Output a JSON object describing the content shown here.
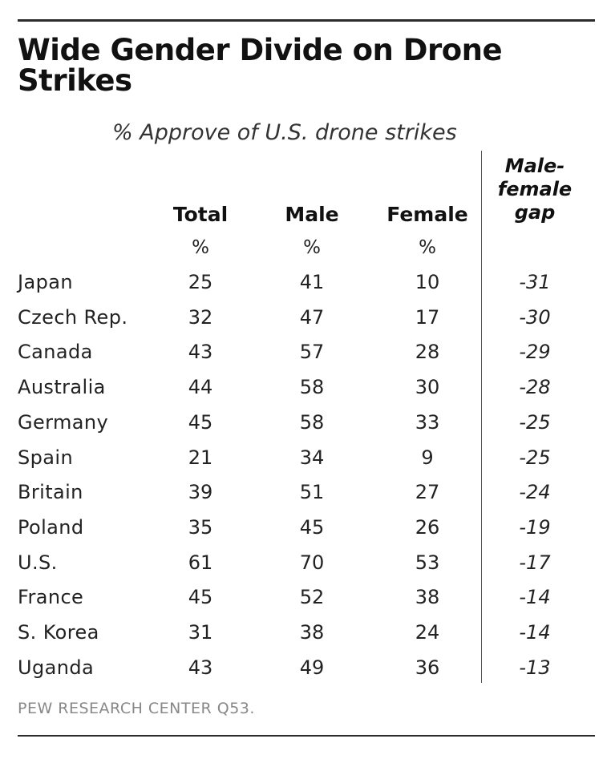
{
  "title": "Wide Gender Divide on Drone Strikes",
  "chart_data": {
    "type": "table",
    "subtitle": "% Approve of U.S. drone strikes",
    "columns": {
      "total": "Total",
      "male": "Male",
      "female": "Female",
      "gap": "Male-female gap"
    },
    "units": {
      "total": "%",
      "male": "%",
      "female": "%"
    },
    "rows": [
      {
        "country": "Japan",
        "total": "25",
        "male": "41",
        "female": "10",
        "gap": "-31"
      },
      {
        "country": "Czech Rep.",
        "total": "32",
        "male": "47",
        "female": "17",
        "gap": "-30"
      },
      {
        "country": "Canada",
        "total": "43",
        "male": "57",
        "female": "28",
        "gap": "-29"
      },
      {
        "country": "Australia",
        "total": "44",
        "male": "58",
        "female": "30",
        "gap": "-28"
      },
      {
        "country": "Germany",
        "total": "45",
        "male": "58",
        "female": "33",
        "gap": "-25"
      },
      {
        "country": "Spain",
        "total": "21",
        "male": "34",
        "female": "9",
        "gap": "-25"
      },
      {
        "country": "Britain",
        "total": "39",
        "male": "51",
        "female": "27",
        "gap": "-24"
      },
      {
        "country": "Poland",
        "total": "35",
        "male": "45",
        "female": "26",
        "gap": "-19"
      },
      {
        "country": "U.S.",
        "total": "61",
        "male": "70",
        "female": "53",
        "gap": "-17"
      },
      {
        "country": "France",
        "total": "45",
        "male": "52",
        "female": "38",
        "gap": "-14"
      },
      {
        "country": "S. Korea",
        "total": "31",
        "male": "38",
        "female": "24",
        "gap": "-14"
      },
      {
        "country": "Uganda",
        "total": "43",
        "male": "49",
        "female": "36",
        "gap": "-13"
      }
    ]
  },
  "source": "PEW RESEARCH CENTER Q53."
}
